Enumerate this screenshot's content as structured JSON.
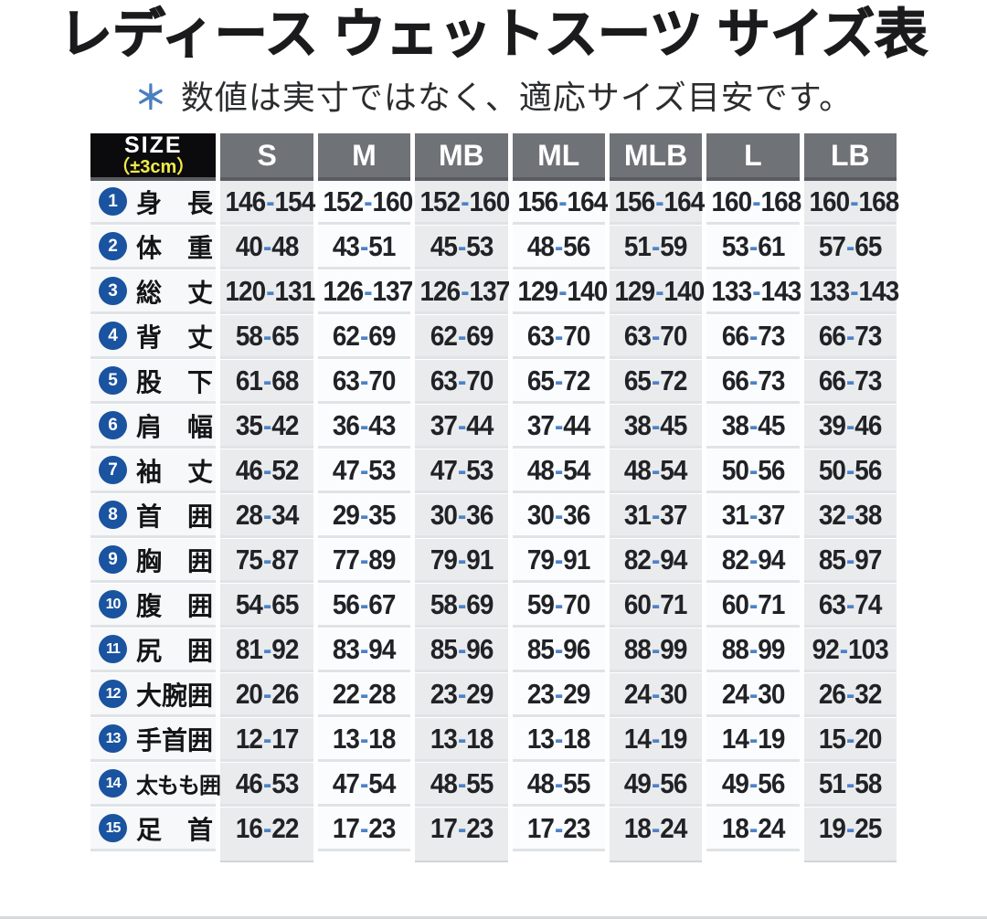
{
  "page": {
    "title": "レディース ウェットスーツ サイズ表",
    "note_mark": "＊",
    "note_text": "数値は実寸ではなく、適応サイズ目安です。"
  },
  "chart_data": {
    "type": "table",
    "title": "レディース ウェットスーツ サイズ表",
    "note": "＊ 数値は実寸ではなく、適応サイズ目安です。",
    "corner_header": {
      "line1": "SIZE",
      "line2": "（±3cm）"
    },
    "columns": [
      "S",
      "M",
      "MB",
      "ML",
      "MLB",
      "L",
      "LB"
    ],
    "rows": [
      {
        "num": 1,
        "label": "身　長",
        "values": [
          "146-154",
          "152-160",
          "152-160",
          "156-164",
          "156-164",
          "160-168",
          "160-168"
        ]
      },
      {
        "num": 2,
        "label": "体　重",
        "values": [
          "40-48",
          "43-51",
          "45-53",
          "48-56",
          "51-59",
          "53-61",
          "57-65"
        ]
      },
      {
        "num": 3,
        "label": "総　丈",
        "values": [
          "120-131",
          "126-137",
          "126-137",
          "129-140",
          "129-140",
          "133-143",
          "133-143"
        ]
      },
      {
        "num": 4,
        "label": "背　丈",
        "values": [
          "58-65",
          "62-69",
          "62-69",
          "63-70",
          "63-70",
          "66-73",
          "66-73"
        ]
      },
      {
        "num": 5,
        "label": "股　下",
        "values": [
          "61-68",
          "63-70",
          "63-70",
          "65-72",
          "65-72",
          "66-73",
          "66-73"
        ]
      },
      {
        "num": 6,
        "label": "肩　幅",
        "values": [
          "35-42",
          "36-43",
          "37-44",
          "37-44",
          "38-45",
          "38-45",
          "39-46"
        ]
      },
      {
        "num": 7,
        "label": "袖　丈",
        "values": [
          "46-52",
          "47-53",
          "47-53",
          "48-54",
          "48-54",
          "50-56",
          "50-56"
        ]
      },
      {
        "num": 8,
        "label": "首　囲",
        "values": [
          "28-34",
          "29-35",
          "30-36",
          "30-36",
          "31-37",
          "31-37",
          "32-38"
        ]
      },
      {
        "num": 9,
        "label": "胸　囲",
        "values": [
          "75-87",
          "77-89",
          "79-91",
          "79-91",
          "82-94",
          "82-94",
          "85-97"
        ]
      },
      {
        "num": 10,
        "label": "腹　囲",
        "values": [
          "54-65",
          "56-67",
          "58-69",
          "59-70",
          "60-71",
          "60-71",
          "63-74"
        ]
      },
      {
        "num": 11,
        "label": "尻　囲",
        "values": [
          "81-92",
          "83-94",
          "85-96",
          "85-96",
          "88-99",
          "88-99",
          "92-103"
        ]
      },
      {
        "num": 12,
        "label": "大腕囲",
        "values": [
          "20-26",
          "22-28",
          "23-29",
          "23-29",
          "24-30",
          "24-30",
          "26-32"
        ]
      },
      {
        "num": 13,
        "label": "手首囲",
        "values": [
          "12-17",
          "13-18",
          "13-18",
          "13-18",
          "14-19",
          "14-19",
          "15-20"
        ]
      },
      {
        "num": 14,
        "label": "太もも囲",
        "values": [
          "46-53",
          "47-54",
          "48-55",
          "48-55",
          "49-56",
          "49-56",
          "51-58"
        ]
      },
      {
        "num": 15,
        "label": "足　首",
        "values": [
          "16-22",
          "17-23",
          "17-23",
          "17-23",
          "18-24",
          "18-24",
          "19-25"
        ]
      }
    ],
    "layout": {
      "gray_column_indices": [
        0,
        2,
        4,
        6
      ],
      "grid": "white-gaps",
      "legend": "none"
    }
  },
  "colors": {
    "header_gray": "#6f7276",
    "header_black": "#0b0b0d",
    "tolerance_yellow": "#f1eb4a",
    "circle_blue": "#1a53a0",
    "hyphen_blue": "#4d82c6",
    "note_asterisk_blue": "#4a7fc0",
    "cell_gray": "#e9ebed",
    "cell_white": "#fbfcfd",
    "row_line": "#e0e3e6",
    "bottom_strip": "#d8d9da"
  }
}
